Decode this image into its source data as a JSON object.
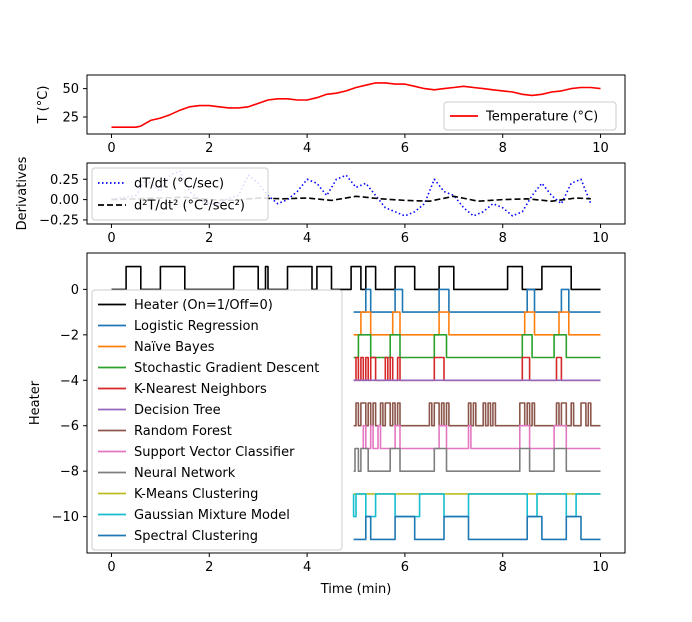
{
  "chart_data": [
    {
      "type": "line",
      "ylabel": "T (°C)",
      "xlim": [
        -0.5,
        10.5
      ],
      "ylim": [
        10,
        62
      ],
      "xticks": [
        "0",
        "2",
        "4",
        "6",
        "8",
        "10"
      ],
      "yticks": [
        "25",
        "50"
      ],
      "legend_position": "lower-right",
      "series": [
        {
          "name": "Temperature (°C)",
          "color": "#ff0000",
          "style": "solid",
          "x": [
            0,
            0.2,
            0.4,
            0.5,
            0.6,
            0.8,
            1.0,
            1.2,
            1.4,
            1.6,
            1.8,
            2.0,
            2.2,
            2.4,
            2.6,
            2.8,
            3.0,
            3.2,
            3.4,
            3.6,
            3.8,
            4.0,
            4.2,
            4.4,
            4.6,
            4.8,
            5.0,
            5.2,
            5.4,
            5.6,
            5.8,
            6.0,
            6.2,
            6.4,
            6.6,
            6.8,
            7.0,
            7.2,
            7.4,
            7.6,
            7.8,
            8.0,
            8.2,
            8.4,
            8.6,
            8.8,
            9.0,
            9.2,
            9.4,
            9.6,
            9.8,
            10.0
          ],
          "values": [
            16,
            16,
            16,
            16,
            17,
            22,
            24,
            27,
            31,
            34,
            35,
            35,
            34,
            33,
            33,
            34,
            37,
            40,
            41,
            41,
            40,
            40,
            42,
            45,
            46,
            48,
            51,
            53,
            55,
            55,
            54,
            54,
            52,
            50,
            49,
            50,
            51,
            52,
            51,
            50,
            49,
            48,
            47,
            45,
            44,
            45,
            47,
            48,
            50,
            51,
            51,
            50
          ]
        }
      ]
    },
    {
      "type": "line",
      "ylabel": "Derivatives",
      "xlim": [
        -0.5,
        10.5
      ],
      "ylim": [
        -0.3,
        0.45
      ],
      "xticks": [
        "0",
        "2",
        "4",
        "6",
        "8",
        "10"
      ],
      "yticks": [
        "0.25",
        "0.00",
        "−0.25"
      ],
      "legend_position": "top-left",
      "series": [
        {
          "name": "dT/dt (°C/sec)",
          "color": "#0000ff",
          "style": "dotted",
          "x": [
            0,
            0.5,
            0.7,
            1.0,
            1.2,
            1.4,
            1.6,
            1.8,
            2.0,
            2.2,
            2.4,
            2.6,
            2.8,
            3.0,
            3.2,
            3.4,
            3.6,
            3.8,
            4.0,
            4.2,
            4.4,
            4.6,
            4.8,
            5.0,
            5.2,
            5.4,
            5.6,
            5.8,
            6.0,
            6.2,
            6.4,
            6.6,
            6.8,
            7.0,
            7.2,
            7.4,
            7.6,
            7.8,
            8.0,
            8.2,
            8.4,
            8.6,
            8.8,
            9.0,
            9.2,
            9.4,
            9.6,
            9.8
          ],
          "values": [
            0.0,
            0.05,
            0.25,
            0.1,
            0.3,
            0.35,
            0.1,
            0.0,
            -0.05,
            -0.05,
            0.02,
            0.05,
            0.3,
            0.2,
            0.05,
            -0.05,
            0.0,
            0.1,
            0.25,
            0.2,
            0.05,
            0.25,
            0.3,
            0.15,
            0.2,
            0.05,
            -0.1,
            -0.15,
            -0.2,
            -0.15,
            -0.05,
            0.25,
            0.1,
            0.05,
            -0.1,
            -0.2,
            -0.15,
            -0.05,
            -0.1,
            -0.2,
            -0.15,
            0.05,
            0.2,
            0.05,
            -0.05,
            0.2,
            0.25,
            -0.05
          ]
        },
        {
          "name": "d²T/dt² (°C²/sec²)",
          "color": "#000000",
          "style": "dashed",
          "x": [
            0,
            0.5,
            1.0,
            1.5,
            2.0,
            2.5,
            3.0,
            3.5,
            4.0,
            4.5,
            5.0,
            5.5,
            6.0,
            6.5,
            7.0,
            7.5,
            8.0,
            8.5,
            9.0,
            9.5,
            9.8
          ],
          "values": [
            0.0,
            0.01,
            0.02,
            0.03,
            0.0,
            -0.01,
            0.02,
            0.01,
            0.02,
            -0.01,
            0.04,
            0.01,
            -0.01,
            -0.02,
            0.04,
            -0.02,
            0.0,
            0.01,
            -0.02,
            0.02,
            0.01
          ]
        }
      ]
    },
    {
      "type": "line",
      "xlabel": "Time (min)",
      "ylabel": "Heater",
      "xlim": [
        -0.5,
        10.5
      ],
      "ylim": [
        -11.6,
        1.6
      ],
      "xticks": [
        "0",
        "2",
        "4",
        "6",
        "8",
        "10"
      ],
      "yticks": [
        "0",
        "−2",
        "−4",
        "−6",
        "−8",
        "−10"
      ],
      "legend_position": "center-left",
      "series": [
        {
          "name": "Heater (On=1/Off=0)",
          "color": "#000000",
          "offset": 0,
          "segments": [
            [
              0.3,
              0.6
            ],
            [
              1.0,
              1.5
            ],
            [
              2.5,
              3.0
            ],
            [
              3.15,
              3.2
            ],
            [
              3.6,
              4.1
            ],
            [
              4.2,
              4.5
            ],
            [
              4.9,
              5.1
            ],
            [
              5.2,
              5.4
            ],
            [
              5.8,
              6.2
            ],
            [
              6.7,
              7.0
            ],
            [
              8.1,
              8.4
            ],
            [
              8.8,
              9.4
            ]
          ]
        },
        {
          "name": "Logistic Regression",
          "color": "#1f77b4",
          "offset": -1,
          "start": 4.95,
          "segments": [
            [
              5.2,
              5.3
            ],
            [
              5.8,
              5.95
            ],
            [
              6.7,
              6.9
            ],
            [
              8.5,
              8.65
            ],
            [
              9.2,
              9.35
            ]
          ]
        },
        {
          "name": "Naïve Bayes",
          "color": "#ff7f0e",
          "offset": -2,
          "start": 4.95,
          "segments": [
            [
              5.1,
              5.3
            ],
            [
              5.75,
              5.9
            ],
            [
              6.7,
              6.9
            ],
            [
              8.45,
              8.65
            ],
            [
              9.15,
              9.35
            ]
          ]
        },
        {
          "name": "Stochastic Gradient Descent",
          "color": "#2ca02c",
          "offset": -3,
          "start": 4.95,
          "segments": [
            [
              5.05,
              5.3
            ],
            [
              5.7,
              5.9
            ],
            [
              6.6,
              6.85
            ],
            [
              8.4,
              8.6
            ],
            [
              9.05,
              9.3
            ]
          ]
        },
        {
          "name": "K-Nearest Neighbors",
          "color": "#d62728",
          "offset": -4,
          "start": 4.95,
          "segments": [
            [
              5.0,
              5.05
            ],
            [
              5.1,
              5.15
            ],
            [
              5.2,
              5.25
            ],
            [
              5.3,
              5.4
            ],
            [
              5.6,
              5.65
            ],
            [
              5.7,
              5.75
            ],
            [
              5.85,
              5.9
            ],
            [
              6.6,
              6.8
            ],
            [
              8.4,
              8.55
            ],
            [
              9.1,
              9.2
            ]
          ]
        },
        {
          "name": "Decision Tree",
          "color": "#9467bd",
          "offset": -4,
          "start": 4.95,
          "segments": []
        },
        {
          "name": "Random Forest",
          "color": "#8c564b",
          "offset": -6,
          "start": 4.95,
          "segments": [
            [
              5.0,
              5.05
            ],
            [
              5.1,
              5.2
            ],
            [
              5.25,
              5.3
            ],
            [
              5.35,
              5.4
            ],
            [
              5.5,
              5.55
            ],
            [
              5.6,
              5.7
            ],
            [
              5.75,
              5.8
            ],
            [
              5.85,
              5.9
            ],
            [
              6.5,
              6.55
            ],
            [
              6.6,
              6.7
            ],
            [
              6.75,
              6.8
            ],
            [
              6.85,
              6.9
            ],
            [
              7.3,
              7.35
            ],
            [
              7.4,
              7.45
            ],
            [
              7.6,
              7.65
            ],
            [
              7.7,
              7.75
            ],
            [
              7.8,
              7.85
            ],
            [
              8.35,
              8.45
            ],
            [
              8.5,
              8.55
            ],
            [
              8.6,
              8.65
            ],
            [
              9.1,
              9.15
            ],
            [
              9.2,
              9.3
            ],
            [
              9.4,
              9.45
            ],
            [
              9.6,
              9.7
            ],
            [
              9.75,
              9.8
            ]
          ]
        },
        {
          "name": "Support Vector Classifier",
          "color": "#e377c2",
          "offset": -7,
          "start": 5.1,
          "segments": [
            [
              5.15,
              5.2
            ],
            [
              5.3,
              5.35
            ],
            [
              5.45,
              5.5
            ],
            [
              5.8,
              5.9
            ],
            [
              6.7,
              6.85
            ],
            [
              7.3,
              7.35
            ],
            [
              8.35,
              8.55
            ],
            [
              9.05,
              9.3
            ]
          ]
        },
        {
          "name": "Neural Network",
          "color": "#7f7f7f",
          "offset": -8,
          "start": 4.95,
          "segments": [
            [
              4.98,
              5.05
            ],
            [
              5.1,
              5.25
            ],
            [
              5.7,
              5.9
            ],
            [
              6.6,
              6.85
            ],
            [
              8.35,
              8.55
            ],
            [
              9.05,
              9.3
            ]
          ]
        },
        {
          "name": "K-Means Clustering",
          "color": "#bcbd22",
          "offset": -9,
          "start": 4.95,
          "segments": []
        },
        {
          "name": "Gaussian Mixture Model",
          "color": "#17becf",
          "offset": -10,
          "start": 4.95,
          "inverted": true,
          "segments": [
            [
              4.95,
              5.0
            ],
            [
              5.2,
              5.4
            ],
            [
              5.8,
              6.3
            ],
            [
              6.8,
              7.3
            ],
            [
              8.5,
              8.7
            ],
            [
              9.3,
              9.5
            ]
          ]
        },
        {
          "name": "Spectral Clustering",
          "color": "#1f77b4",
          "offset": -11,
          "start": 4.95,
          "segments": [
            [
              5.2,
              5.3
            ],
            [
              5.8,
              6.2
            ],
            [
              6.8,
              7.3
            ],
            [
              8.5,
              8.8
            ],
            [
              9.3,
              9.6
            ]
          ]
        }
      ]
    }
  ]
}
